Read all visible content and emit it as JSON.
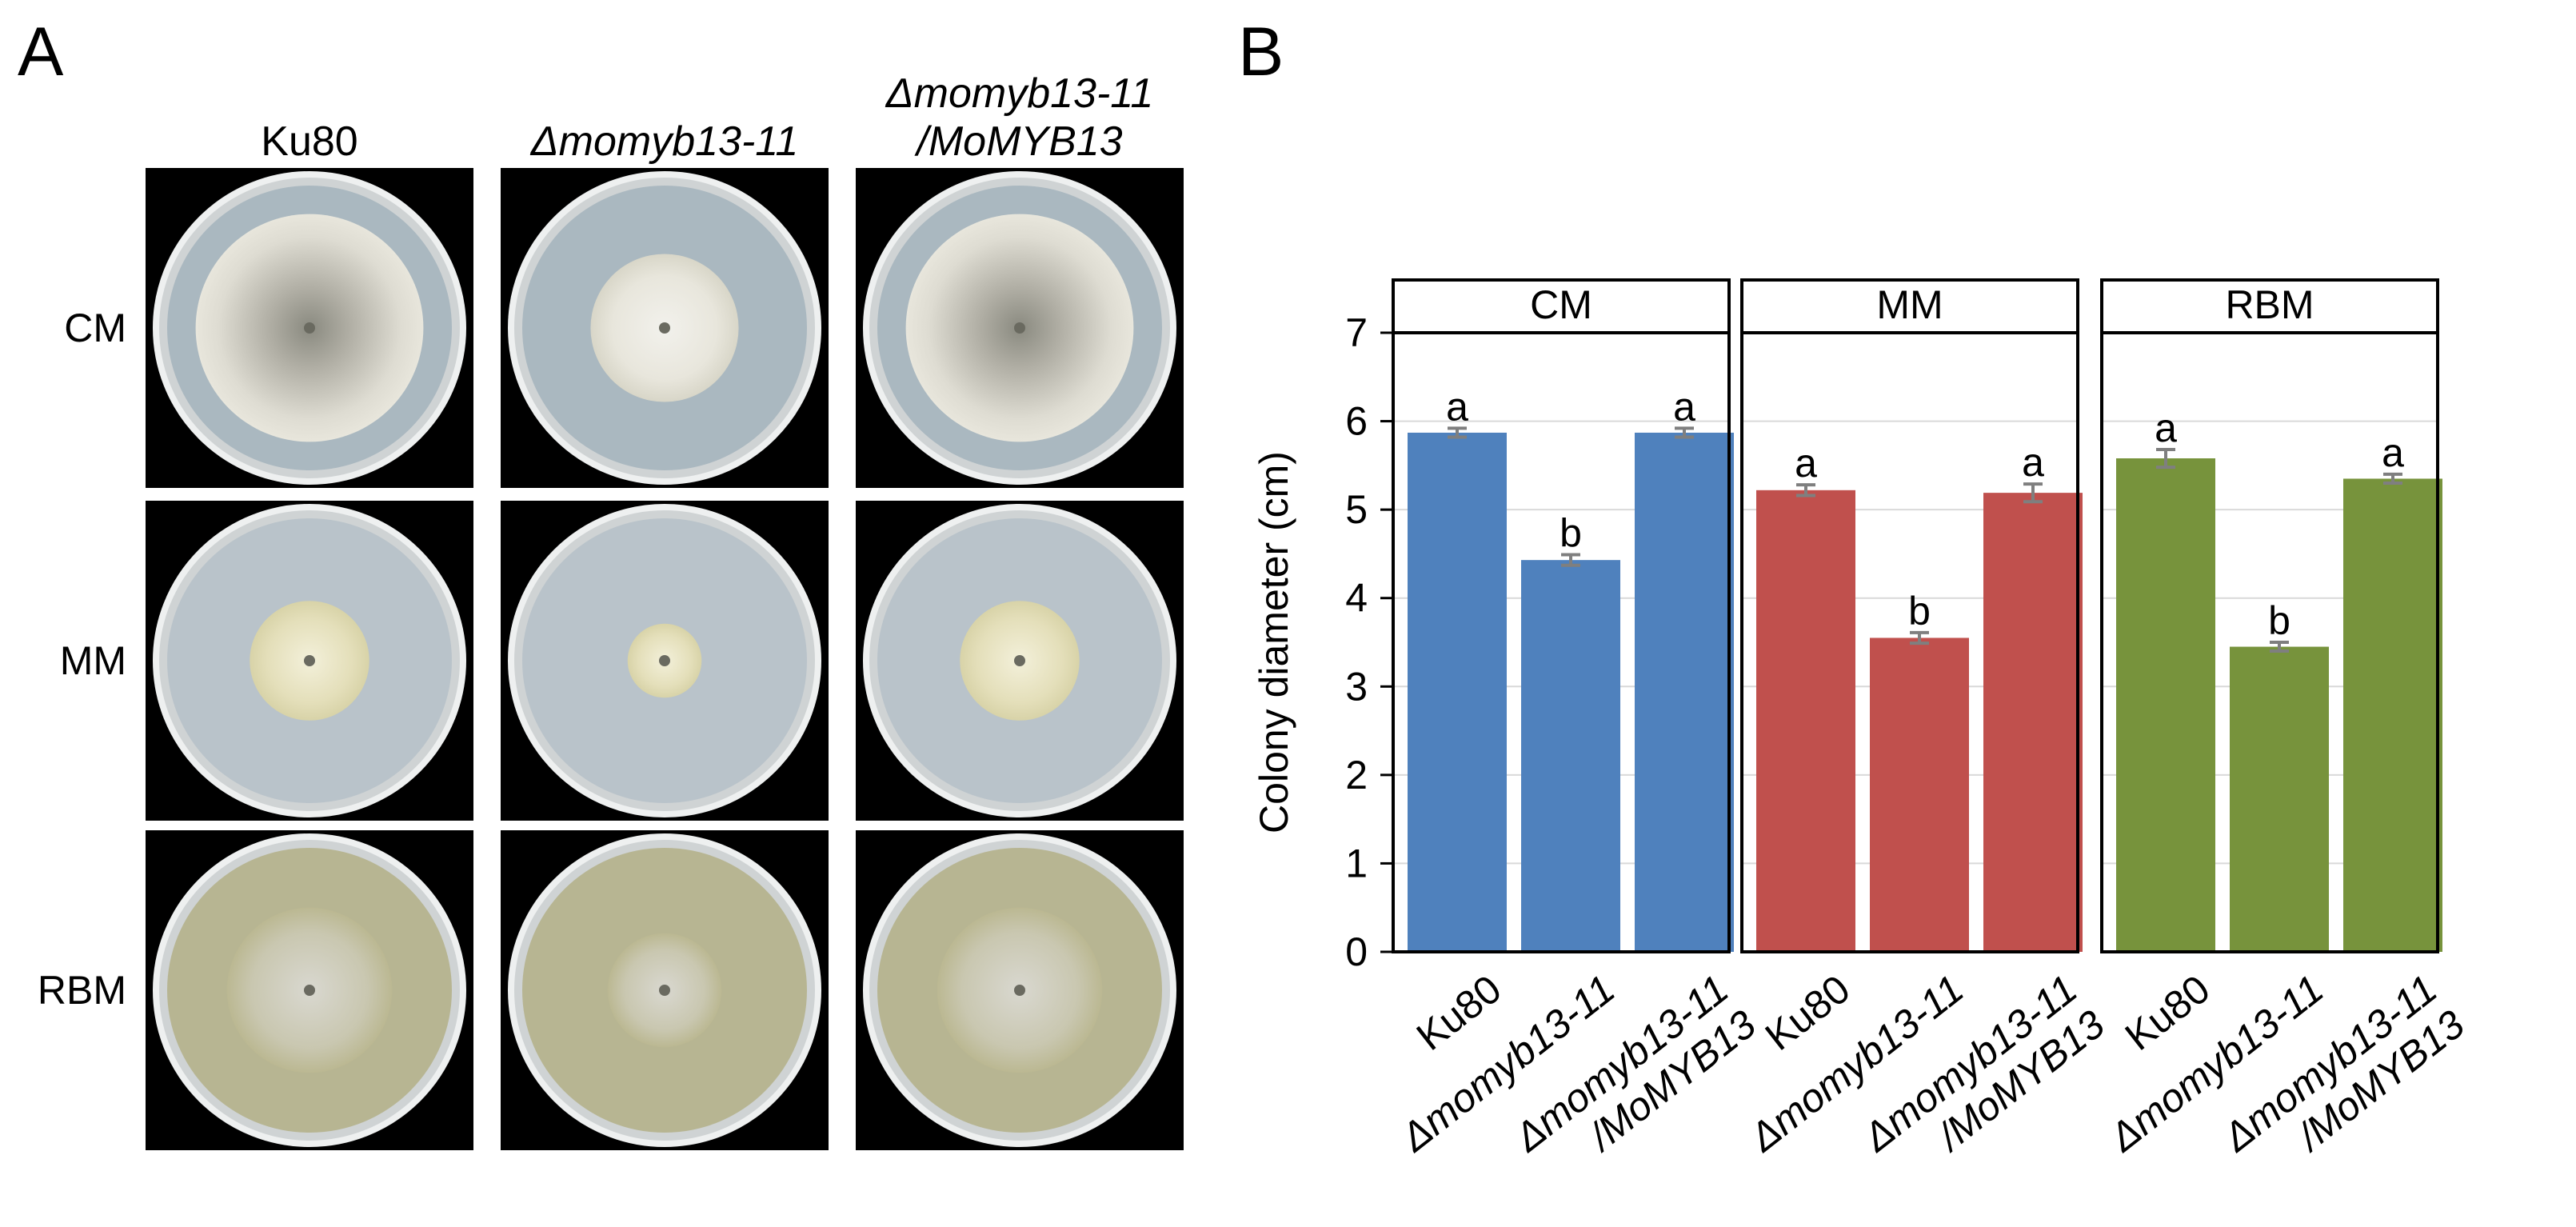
{
  "panels": {
    "a": "A",
    "b": "B"
  },
  "photos": {
    "columns": [
      "Ku80",
      "Δmomyb13-11",
      "Δmomyb13-11\n/MoMYB13"
    ],
    "rows": [
      "CM",
      "MM",
      "RBM"
    ]
  },
  "chart_data": {
    "type": "bar",
    "ylabel": "Colony diameter (cm)",
    "ylim": [
      0,
      7
    ],
    "yticks": [
      0,
      1,
      2,
      3,
      4,
      5,
      6,
      7
    ],
    "grid": true,
    "categories": [
      "Ku80",
      "Δmomyb13-11",
      "Δmomyb13-11\n/MoMYB13"
    ],
    "facets": [
      {
        "label": "CM",
        "color": "#4f81bd",
        "values": [
          5.87,
          4.43,
          5.87
        ],
        "errors": [
          0.05,
          0.06,
          0.05
        ],
        "letters": [
          "a",
          "b",
          "a"
        ]
      },
      {
        "label": "MM",
        "color": "#c0504d",
        "values": [
          5.22,
          3.55,
          5.19
        ],
        "errors": [
          0.06,
          0.06,
          0.1
        ],
        "letters": [
          "a",
          "b",
          "a"
        ]
      },
      {
        "label": "RBM",
        "color": "#77933c",
        "values": [
          5.58,
          3.45,
          5.35
        ],
        "errors": [
          0.1,
          0.05,
          0.05
        ],
        "letters": [
          "a",
          "b",
          "a"
        ]
      }
    ]
  },
  "colors": {
    "error_bar": "#7f7f7f",
    "gridline": "#d9d9d9"
  }
}
